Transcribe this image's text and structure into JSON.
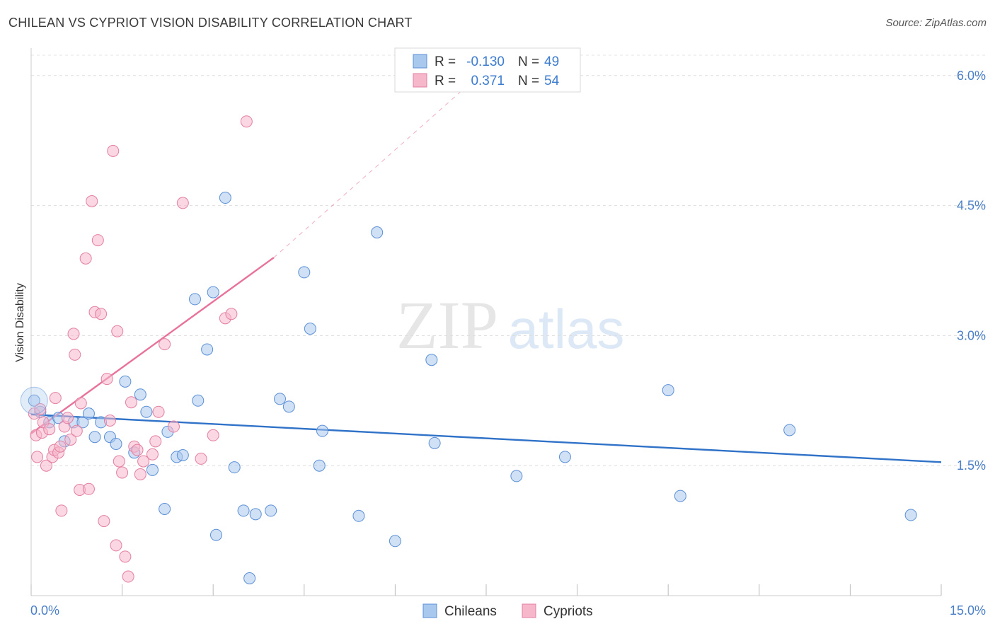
{
  "title": "CHILEAN VS CYPRIOT VISION DISABILITY CORRELATION CHART",
  "source": "Source: ZipAtlas.com",
  "watermark": {
    "zip": "ZIP",
    "atlas": "atlas"
  },
  "legend_stats": {
    "r_label": "R =",
    "n_label": "N =",
    "rows": [
      {
        "r": "-0.130",
        "n": "49",
        "color": "#a9c8ee"
      },
      {
        "r": "0.371",
        "n": "54",
        "color": "#f6b7cb"
      }
    ]
  },
  "chart_data": {
    "type": "scatter",
    "ylabel": "Vision Disability",
    "xlim": [
      0,
      15
    ],
    "ylim": [
      0,
      6.3
    ],
    "y_ticks": [
      {
        "value": 1.5,
        "label": "1.5%"
      },
      {
        "value": 3.0,
        "label": "3.0%"
      },
      {
        "value": 4.5,
        "label": "4.5%"
      },
      {
        "value": 6.0,
        "label": "6.0%"
      }
    ],
    "x_tick_labels": {
      "min": "0.0%",
      "max": "15.0%"
    },
    "grid": true,
    "legend": "bottom-center",
    "series": [
      {
        "name": "Chileans",
        "color": "#a9c8ee",
        "stroke": "#5b8fd6",
        "trend_color": "#2f72c8",
        "trend": {
          "x0": 0.0,
          "y0": 2.09,
          "x1": 15.0,
          "y1": 1.54
        },
        "points": [
          [
            0.05,
            2.25
          ],
          [
            0.15,
            2.12
          ],
          [
            0.3,
            2.0
          ],
          [
            0.45,
            2.05
          ],
          [
            0.55,
            1.78
          ],
          [
            0.7,
            2.0
          ],
          [
            0.85,
            2.0
          ],
          [
            0.95,
            2.1
          ],
          [
            1.05,
            1.83
          ],
          [
            1.15,
            2.0
          ],
          [
            1.3,
            1.83
          ],
          [
            1.4,
            1.75
          ],
          [
            1.55,
            2.47
          ],
          [
            1.7,
            1.65
          ],
          [
            1.8,
            2.32
          ],
          [
            1.9,
            2.12
          ],
          [
            2.0,
            1.45
          ],
          [
            2.2,
            1.0
          ],
          [
            2.25,
            1.89
          ],
          [
            2.4,
            1.6
          ],
          [
            2.5,
            1.62
          ],
          [
            2.7,
            3.42
          ],
          [
            2.75,
            2.25
          ],
          [
            2.9,
            2.84
          ],
          [
            3.0,
            3.5
          ],
          [
            3.05,
            0.7
          ],
          [
            3.2,
            4.59
          ],
          [
            3.35,
            1.48
          ],
          [
            3.5,
            0.98
          ],
          [
            3.6,
            0.2
          ],
          [
            3.7,
            0.94
          ],
          [
            3.95,
            0.98
          ],
          [
            4.1,
            2.27
          ],
          [
            4.25,
            2.18
          ],
          [
            4.5,
            3.73
          ],
          [
            4.6,
            3.08
          ],
          [
            4.75,
            1.5
          ],
          [
            4.8,
            1.9
          ],
          [
            5.4,
            0.92
          ],
          [
            5.7,
            4.19
          ],
          [
            6.0,
            0.63
          ],
          [
            6.6,
            2.72
          ],
          [
            6.65,
            1.76
          ],
          [
            8.0,
            1.38
          ],
          [
            8.8,
            1.6
          ],
          [
            10.5,
            2.37
          ],
          [
            10.7,
            1.15
          ],
          [
            12.5,
            1.91
          ],
          [
            14.5,
            0.93
          ]
        ]
      },
      {
        "name": "Cypriots",
        "color": "#f6b7cb",
        "stroke": "#e37fa2",
        "trend_color": "#e8729b",
        "trend": {
          "x0": 0.0,
          "y0": 1.87,
          "x1": 4.0,
          "y1": 3.9
        },
        "trend_dashed": {
          "x0": 4.0,
          "y0": 3.9,
          "x1": 7.7,
          "y1": 6.2
        },
        "points": [
          [
            0.05,
            2.1
          ],
          [
            0.08,
            1.85
          ],
          [
            0.1,
            1.6
          ],
          [
            0.15,
            2.15
          ],
          [
            0.18,
            1.88
          ],
          [
            0.2,
            2.0
          ],
          [
            0.25,
            1.5
          ],
          [
            0.3,
            1.92
          ],
          [
            0.35,
            1.6
          ],
          [
            0.38,
            1.68
          ],
          [
            0.4,
            2.28
          ],
          [
            0.45,
            1.65
          ],
          [
            0.48,
            1.72
          ],
          [
            0.5,
            0.98
          ],
          [
            0.55,
            1.95
          ],
          [
            0.6,
            2.05
          ],
          [
            0.65,
            1.8
          ],
          [
            0.7,
            3.02
          ],
          [
            0.72,
            2.78
          ],
          [
            0.75,
            1.9
          ],
          [
            0.8,
            1.22
          ],
          [
            0.82,
            2.22
          ],
          [
            0.9,
            3.89
          ],
          [
            0.95,
            1.23
          ],
          [
            1.0,
            4.55
          ],
          [
            1.05,
            3.27
          ],
          [
            1.1,
            4.1
          ],
          [
            1.15,
            3.25
          ],
          [
            1.2,
            0.86
          ],
          [
            1.25,
            2.5
          ],
          [
            1.3,
            2.02
          ],
          [
            1.35,
            5.13
          ],
          [
            1.4,
            0.58
          ],
          [
            1.42,
            3.05
          ],
          [
            1.45,
            1.55
          ],
          [
            1.5,
            1.42
          ],
          [
            1.55,
            0.45
          ],
          [
            1.6,
            0.22
          ],
          [
            1.65,
            2.23
          ],
          [
            1.7,
            1.72
          ],
          [
            1.75,
            1.68
          ],
          [
            1.8,
            1.4
          ],
          [
            1.85,
            1.55
          ],
          [
            2.0,
            1.63
          ],
          [
            2.05,
            1.78
          ],
          [
            2.1,
            2.12
          ],
          [
            2.2,
            2.9
          ],
          [
            2.35,
            1.95
          ],
          [
            2.5,
            4.53
          ],
          [
            2.8,
            1.58
          ],
          [
            3.0,
            1.85
          ],
          [
            3.2,
            3.2
          ],
          [
            3.3,
            3.25
          ],
          [
            3.55,
            5.47
          ]
        ]
      }
    ]
  }
}
